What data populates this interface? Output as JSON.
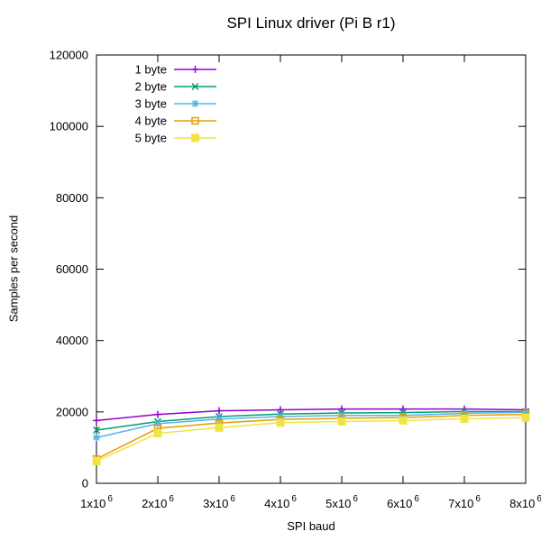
{
  "page": {
    "background_color": "#ffffff",
    "text_color": "#000000"
  },
  "chart_data": {
    "type": "line",
    "title": "SPI Linux driver (Pi B r1)",
    "xlabel": "SPI baud",
    "ylabel": "Samples per second",
    "grid": false,
    "legend_position": "top-left-inside",
    "axis_color": "#000000",
    "xlim": [
      1000000,
      8000000
    ],
    "ylim": [
      0,
      120000
    ],
    "x": [
      1000000,
      2000000,
      3000000,
      4000000,
      5000000,
      6000000,
      7000000,
      8000000
    ],
    "x_ticks": [
      {
        "base": "1x10",
        "exp": "6"
      },
      {
        "base": "2x10",
        "exp": "6"
      },
      {
        "base": "3x10",
        "exp": "6"
      },
      {
        "base": "4x10",
        "exp": "6"
      },
      {
        "base": "5x10",
        "exp": "6"
      },
      {
        "base": "6x10",
        "exp": "6"
      },
      {
        "base": "7x10",
        "exp": "6"
      },
      {
        "base": "8x10",
        "exp": "6"
      }
    ],
    "y_ticks": [
      0,
      20000,
      40000,
      60000,
      80000,
      100000,
      120000
    ],
    "y_tick_labels": [
      "0",
      "20000",
      "40000",
      "60000",
      "80000",
      "100000",
      "120000"
    ],
    "series": [
      {
        "name": "1 byte",
        "color": "#9400d3",
        "marker": "plus",
        "values": [
          17600,
          19300,
          20300,
          20600,
          20800,
          20800,
          20800,
          20600
        ]
      },
      {
        "name": "2 byte",
        "color": "#009e73",
        "marker": "cross",
        "values": [
          14900,
          17300,
          18700,
          19400,
          19700,
          19800,
          20100,
          20100
        ]
      },
      {
        "name": "3 byte",
        "color": "#56b4e9",
        "marker": "asterisk",
        "values": [
          12800,
          16700,
          18000,
          18700,
          19000,
          19000,
          19600,
          19900
        ]
      },
      {
        "name": "4 byte",
        "color": "#e69f00",
        "marker": "square-open",
        "values": [
          6800,
          15400,
          16900,
          17900,
          18200,
          18400,
          19000,
          19300
        ]
      },
      {
        "name": "5 byte",
        "color": "#f0e442",
        "marker": "square-filled",
        "values": [
          6200,
          14000,
          15600,
          17000,
          17300,
          17600,
          18100,
          18400
        ]
      }
    ]
  }
}
